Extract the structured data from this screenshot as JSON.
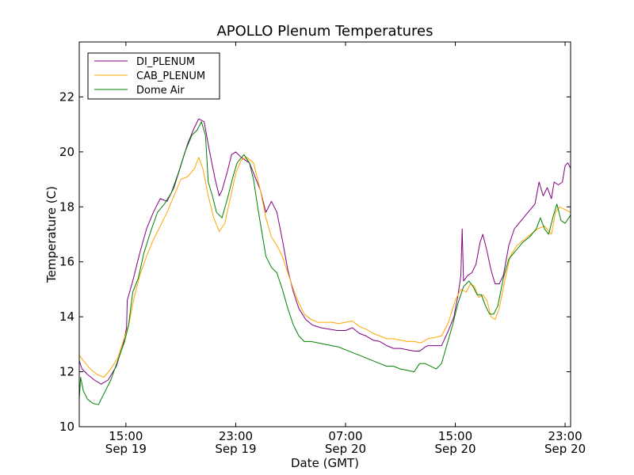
{
  "chart_data": {
    "type": "line",
    "title": "APOLLO Plenum Temperatures",
    "xlabel": "Date (GMT)",
    "ylabel": "Temperature (C)",
    "xlim": [
      11.6,
      47.4
    ],
    "ylim": [
      10,
      24
    ],
    "yticks": [
      10,
      12,
      14,
      16,
      18,
      20,
      22
    ],
    "xticks": [
      {
        "x": 15,
        "time": "15:00",
        "date": "Sep 19"
      },
      {
        "x": 23,
        "time": "23:00",
        "date": "Sep 19"
      },
      {
        "x": 31,
        "time": "07:00",
        "date": "Sep 20"
      },
      {
        "x": 39,
        "time": "15:00",
        "date": "Sep 20"
      },
      {
        "x": 47,
        "time": "23:00",
        "date": "Sep 20"
      }
    ],
    "legend_position": "top-left",
    "series": [
      {
        "name": "DI_PLENUM",
        "color": "#800080",
        "points": [
          [
            11.6,
            12.4
          ],
          [
            11.8,
            12.1
          ],
          [
            12.2,
            11.9
          ],
          [
            12.7,
            11.7
          ],
          [
            13.2,
            11.55
          ],
          [
            13.7,
            11.7
          ],
          [
            14.3,
            12.2
          ],
          [
            14.8,
            13.0
          ],
          [
            15.05,
            13.6
          ],
          [
            15.1,
            14.6
          ],
          [
            15.5,
            15.3
          ],
          [
            16.0,
            16.3
          ],
          [
            16.5,
            17.2
          ],
          [
            17.0,
            17.8
          ],
          [
            17.5,
            18.3
          ],
          [
            18.0,
            18.2
          ],
          [
            18.5,
            18.7
          ],
          [
            19.0,
            19.5
          ],
          [
            19.5,
            20.3
          ],
          [
            20.0,
            20.9
          ],
          [
            20.3,
            21.2
          ],
          [
            20.7,
            21.1
          ],
          [
            21.1,
            20.0
          ],
          [
            21.5,
            19.0
          ],
          [
            21.8,
            18.4
          ],
          [
            22.0,
            18.6
          ],
          [
            22.4,
            19.3
          ],
          [
            22.7,
            19.9
          ],
          [
            23.0,
            20.0
          ],
          [
            23.4,
            19.8
          ],
          [
            24.0,
            19.6
          ],
          [
            24.4,
            19.1
          ],
          [
            24.8,
            18.6
          ],
          [
            25.2,
            17.8
          ],
          [
            25.6,
            18.2
          ],
          [
            26.0,
            17.8
          ],
          [
            26.4,
            16.8
          ],
          [
            26.8,
            15.7
          ],
          [
            27.2,
            14.9
          ],
          [
            27.6,
            14.3
          ],
          [
            28.1,
            13.9
          ],
          [
            28.6,
            13.7
          ],
          [
            29.2,
            13.6
          ],
          [
            29.8,
            13.55
          ],
          [
            30.4,
            13.5
          ],
          [
            31.0,
            13.5
          ],
          [
            31.5,
            13.6
          ],
          [
            32.0,
            13.4
          ],
          [
            32.5,
            13.3
          ],
          [
            33.0,
            13.15
          ],
          [
            33.5,
            13.1
          ],
          [
            34.0,
            12.95
          ],
          [
            34.5,
            12.85
          ],
          [
            35.0,
            12.85
          ],
          [
            35.5,
            12.8
          ],
          [
            36.0,
            12.75
          ],
          [
            36.4,
            12.75
          ],
          [
            36.8,
            12.9
          ],
          [
            37.0,
            12.95
          ],
          [
            37.5,
            12.95
          ],
          [
            38.0,
            12.95
          ],
          [
            38.5,
            13.5
          ],
          [
            38.9,
            14.0
          ],
          [
            39.2,
            14.8
          ],
          [
            39.4,
            15.5
          ],
          [
            39.5,
            17.2
          ],
          [
            39.6,
            15.3
          ],
          [
            39.9,
            15.5
          ],
          [
            40.2,
            15.6
          ],
          [
            40.5,
            15.9
          ],
          [
            40.8,
            16.7
          ],
          [
            41.0,
            17.0
          ],
          [
            41.3,
            16.4
          ],
          [
            41.6,
            15.7
          ],
          [
            41.9,
            15.2
          ],
          [
            42.2,
            15.2
          ],
          [
            42.5,
            15.5
          ],
          [
            42.9,
            16.6
          ],
          [
            43.3,
            17.2
          ],
          [
            43.8,
            17.5
          ],
          [
            44.3,
            17.8
          ],
          [
            44.8,
            18.1
          ],
          [
            45.1,
            18.9
          ],
          [
            45.4,
            18.4
          ],
          [
            45.7,
            18.7
          ],
          [
            46.0,
            18.3
          ],
          [
            46.2,
            18.9
          ],
          [
            46.5,
            18.8
          ],
          [
            46.8,
            18.9
          ],
          [
            47.0,
            19.5
          ],
          [
            47.2,
            19.6
          ],
          [
            47.4,
            19.4
          ]
        ]
      },
      {
        "name": "CAB_PLENUM",
        "color": "#FFA500",
        "points": [
          [
            11.6,
            12.6
          ],
          [
            11.9,
            12.4
          ],
          [
            12.4,
            12.1
          ],
          [
            12.9,
            11.9
          ],
          [
            13.4,
            11.8
          ],
          [
            13.9,
            12.1
          ],
          [
            14.4,
            12.5
          ],
          [
            14.8,
            13.1
          ],
          [
            15.2,
            13.7
          ],
          [
            15.6,
            14.7
          ],
          [
            16.0,
            15.5
          ],
          [
            16.5,
            16.2
          ],
          [
            17.0,
            16.8
          ],
          [
            17.5,
            17.3
          ],
          [
            18.0,
            17.8
          ],
          [
            18.5,
            18.4
          ],
          [
            19.0,
            19.0
          ],
          [
            19.5,
            19.1
          ],
          [
            20.0,
            19.4
          ],
          [
            20.3,
            19.8
          ],
          [
            20.6,
            19.4
          ],
          [
            21.0,
            18.4
          ],
          [
            21.4,
            17.6
          ],
          [
            21.8,
            17.1
          ],
          [
            22.2,
            17.4
          ],
          [
            22.6,
            18.3
          ],
          [
            23.0,
            19.2
          ],
          [
            23.4,
            19.7
          ],
          [
            23.8,
            19.8
          ],
          [
            24.3,
            19.6
          ],
          [
            24.8,
            18.6
          ],
          [
            25.2,
            17.6
          ],
          [
            25.6,
            16.9
          ],
          [
            26.0,
            16.6
          ],
          [
            26.4,
            16.2
          ],
          [
            26.8,
            15.6
          ],
          [
            27.2,
            15.0
          ],
          [
            27.6,
            14.5
          ],
          [
            28.0,
            14.1
          ],
          [
            28.5,
            13.9
          ],
          [
            29.0,
            13.8
          ],
          [
            29.5,
            13.8
          ],
          [
            30.0,
            13.8
          ],
          [
            30.5,
            13.75
          ],
          [
            31.0,
            13.8
          ],
          [
            31.5,
            13.85
          ],
          [
            32.0,
            13.65
          ],
          [
            32.5,
            13.55
          ],
          [
            33.0,
            13.4
          ],
          [
            33.5,
            13.3
          ],
          [
            34.0,
            13.2
          ],
          [
            34.5,
            13.2
          ],
          [
            35.0,
            13.15
          ],
          [
            35.5,
            13.1
          ],
          [
            36.0,
            13.1
          ],
          [
            36.5,
            13.05
          ],
          [
            37.0,
            13.2
          ],
          [
            37.5,
            13.25
          ],
          [
            38.0,
            13.3
          ],
          [
            38.5,
            13.8
          ],
          [
            39.0,
            14.6
          ],
          [
            39.4,
            15.0
          ],
          [
            39.8,
            14.9
          ],
          [
            40.1,
            15.2
          ],
          [
            40.4,
            15.1
          ],
          [
            40.7,
            14.7
          ],
          [
            41.0,
            14.8
          ],
          [
            41.3,
            14.6
          ],
          [
            41.6,
            14.0
          ],
          [
            41.9,
            13.9
          ],
          [
            42.2,
            14.3
          ],
          [
            42.6,
            15.3
          ],
          [
            43.0,
            16.2
          ],
          [
            43.5,
            16.6
          ],
          [
            44.0,
            16.8
          ],
          [
            44.5,
            17.0
          ],
          [
            45.0,
            17.2
          ],
          [
            45.5,
            17.3
          ],
          [
            46.0,
            17.0
          ],
          [
            46.3,
            17.8
          ],
          [
            46.6,
            18.0
          ],
          [
            47.0,
            17.9
          ],
          [
            47.4,
            17.8
          ]
        ]
      },
      {
        "name": "Dome Air",
        "color": "#008000",
        "points": [
          [
            11.6,
            11.0
          ],
          [
            11.7,
            11.8
          ],
          [
            11.9,
            11.3
          ],
          [
            12.2,
            11.0
          ],
          [
            12.6,
            10.85
          ],
          [
            13.0,
            10.8
          ],
          [
            13.4,
            11.2
          ],
          [
            13.9,
            11.7
          ],
          [
            14.4,
            12.4
          ],
          [
            14.9,
            13.1
          ],
          [
            15.2,
            13.7
          ],
          [
            15.5,
            14.9
          ],
          [
            15.9,
            15.4
          ],
          [
            16.3,
            16.3
          ],
          [
            16.8,
            17.1
          ],
          [
            17.3,
            17.8
          ],
          [
            17.8,
            18.1
          ],
          [
            18.3,
            18.5
          ],
          [
            18.8,
            19.2
          ],
          [
            19.3,
            20.0
          ],
          [
            19.8,
            20.6
          ],
          [
            20.2,
            20.8
          ],
          [
            20.5,
            21.1
          ],
          [
            20.8,
            20.6
          ],
          [
            21.0,
            18.9
          ],
          [
            21.3,
            18.4
          ],
          [
            21.6,
            17.8
          ],
          [
            22.0,
            17.6
          ],
          [
            22.4,
            18.3
          ],
          [
            22.8,
            19.1
          ],
          [
            23.1,
            19.6
          ],
          [
            23.6,
            19.9
          ],
          [
            24.0,
            19.6
          ],
          [
            24.3,
            19.0
          ],
          [
            24.6,
            18.0
          ],
          [
            24.9,
            17.1
          ],
          [
            25.2,
            16.2
          ],
          [
            25.6,
            15.8
          ],
          [
            26.0,
            15.6
          ],
          [
            26.4,
            15.0
          ],
          [
            26.8,
            14.3
          ],
          [
            27.2,
            13.7
          ],
          [
            27.6,
            13.3
          ],
          [
            28.0,
            13.1
          ],
          [
            28.5,
            13.1
          ],
          [
            29.0,
            13.05
          ],
          [
            29.5,
            13.0
          ],
          [
            30.0,
            12.95
          ],
          [
            30.5,
            12.9
          ],
          [
            31.0,
            12.8
          ],
          [
            31.5,
            12.7
          ],
          [
            32.0,
            12.6
          ],
          [
            32.5,
            12.5
          ],
          [
            33.0,
            12.4
          ],
          [
            33.5,
            12.3
          ],
          [
            34.0,
            12.2
          ],
          [
            34.5,
            12.2
          ],
          [
            35.0,
            12.1
          ],
          [
            35.5,
            12.05
          ],
          [
            36.0,
            12.0
          ],
          [
            36.4,
            12.3
          ],
          [
            36.8,
            12.3
          ],
          [
            37.2,
            12.2
          ],
          [
            37.6,
            12.1
          ],
          [
            38.0,
            12.3
          ],
          [
            38.4,
            13.0
          ],
          [
            38.8,
            13.7
          ],
          [
            39.2,
            14.5
          ],
          [
            39.6,
            15.1
          ],
          [
            40.0,
            15.3
          ],
          [
            40.3,
            15.1
          ],
          [
            40.6,
            14.8
          ],
          [
            40.9,
            14.8
          ],
          [
            41.2,
            14.4
          ],
          [
            41.5,
            14.1
          ],
          [
            41.8,
            14.1
          ],
          [
            42.1,
            14.4
          ],
          [
            42.5,
            15.4
          ],
          [
            42.9,
            16.1
          ],
          [
            43.4,
            16.4
          ],
          [
            43.9,
            16.7
          ],
          [
            44.4,
            16.9
          ],
          [
            44.9,
            17.2
          ],
          [
            45.2,
            17.6
          ],
          [
            45.5,
            17.2
          ],
          [
            45.8,
            17.0
          ],
          [
            46.1,
            17.6
          ],
          [
            46.4,
            18.1
          ],
          [
            46.7,
            17.5
          ],
          [
            47.0,
            17.4
          ],
          [
            47.4,
            17.7
          ]
        ]
      }
    ]
  }
}
